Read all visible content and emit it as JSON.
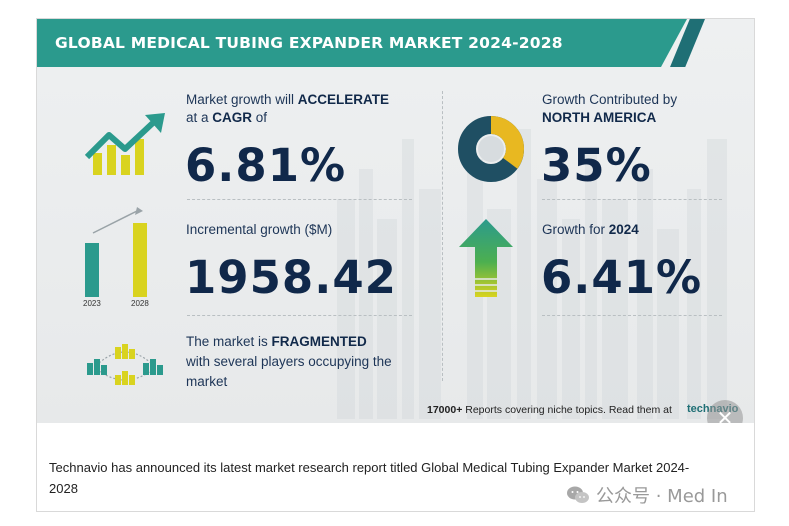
{
  "infographic": {
    "title": "GLOBAL MEDICAL TUBING EXPANDER MARKET 2024-2028",
    "cagr": {
      "line1_prefix": "Market growth will ",
      "line1_bold": "ACCELERATE",
      "line2_prefix": "at a ",
      "line2_bold": "CAGR",
      "line2_suffix": " of",
      "value": "6.81%"
    },
    "incremental": {
      "label": "Incremental growth ($M)",
      "value": "1958.42",
      "bar_start_year": "2023",
      "bar_end_year": "2028"
    },
    "fragmented": {
      "line1_prefix": "The market is ",
      "line1_bold": "FRAGMENTED",
      "line2": "with several players occupying the",
      "line3": "market"
    },
    "region": {
      "label": "Growth Contributed by",
      "region_name": "NORTH AMERICA",
      "value": "35%"
    },
    "year_growth": {
      "label": "Growth for ",
      "year": "2024",
      "value": "6.41%"
    },
    "footer": {
      "count": "17000+",
      "text": " Reports covering niche topics. Read them at",
      "logo": "technavio"
    },
    "colors": {
      "teal": "#2b9a8d",
      "dark_teal": "#1f6f75",
      "navy": "#10284a",
      "yellow": "#d9d31f",
      "green": "#4caf50"
    }
  },
  "close_button": {
    "icon": "close-icon",
    "glyph": "✕"
  },
  "caption": "Technavio has announced its latest market research report titled Global Medical Tubing Expander Market 2024-2028",
  "watermark": {
    "icon": "wechat-icon",
    "text": "公众号 · Med In"
  }
}
